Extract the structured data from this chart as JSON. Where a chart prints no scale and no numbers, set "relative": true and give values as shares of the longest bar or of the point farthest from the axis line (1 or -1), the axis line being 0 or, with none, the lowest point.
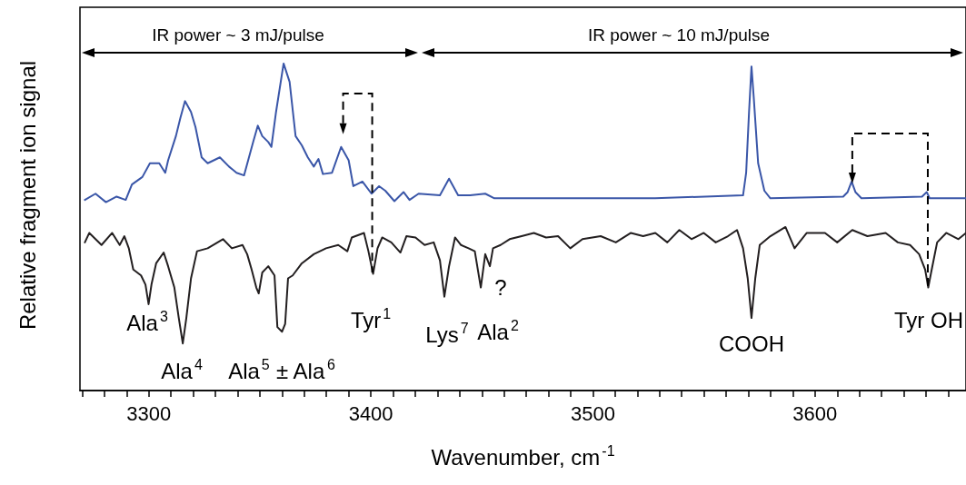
{
  "chart_data": {
    "type": "line",
    "relative": true,
    "xlabel": "Wavenumber, cm$^{-1}$",
    "ylabel": "Relative fragment ion signal",
    "xlim": [
      3269,
      3668
    ],
    "xticks": [
      {
        "value": 3270,
        "label": null
      },
      {
        "value": 3280,
        "label": null
      },
      {
        "value": 3290,
        "label": null
      },
      3300,
      {
        "value": 3310,
        "label": null
      },
      {
        "value": 3320,
        "label": null
      },
      {
        "value": 3330,
        "label": null
      },
      {
        "value": 3340,
        "label": null
      },
      {
        "value": 3350,
        "label": null
      },
      {
        "value": 3360,
        "label": null
      },
      {
        "value": 3370,
        "label": null
      },
      {
        "value": 3380,
        "label": null
      },
      {
        "value": 3390,
        "label": null
      },
      3400,
      {
        "value": 3410,
        "label": null
      },
      {
        "value": 3420,
        "label": null
      },
      {
        "value": 3430,
        "label": null
      },
      {
        "value": 3440,
        "label": null
      },
      {
        "value": 3450,
        "label": null
      },
      {
        "value": 3460,
        "label": null
      },
      {
        "value": 3470,
        "label": null
      },
      {
        "value": 3480,
        "label": null
      },
      {
        "value": 3490,
        "label": null
      },
      3500,
      {
        "value": 3510,
        "label": null
      },
      {
        "value": 3520,
        "label": null
      },
      {
        "value": 3530,
        "label": null
      },
      {
        "value": 3540,
        "label": null
      },
      {
        "value": 3550,
        "label": null
      },
      {
        "value": 3560,
        "label": null
      },
      {
        "value": 3570,
        "label": null
      },
      {
        "value": 3580,
        "label": null
      },
      {
        "value": 3590,
        "label": null
      },
      3600,
      {
        "value": 3610,
        "label": null
      },
      {
        "value": 3620,
        "label": null
      },
      {
        "value": 3630,
        "label": null
      },
      {
        "value": 3640,
        "label": null
      },
      {
        "value": 3650,
        "label": null
      },
      {
        "value": 3660,
        "label": null
      }
    ],
    "marker": "none",
    "line_style": "solid",
    "series": [
      {
        "color": "#3a56a8",
        "x": [
          3271.2,
          3276.0,
          3280.7,
          3285.5,
          3289.6,
          3292.4,
          3297.1,
          3300.5,
          3304.7,
          3307.4,
          3308.7,
          3312.2,
          3314.2,
          3316.3,
          3319.0,
          3321.0,
          3323.8,
          3326.5,
          3332.0,
          3336.1,
          3339.5,
          3342.9,
          3347.0,
          3349.1,
          3351.1,
          3353.8,
          3355.2,
          3357.3,
          3360.7,
          3363.4,
          3366.1,
          3368.9,
          3371.6,
          3374.3,
          3376.4,
          3378.4,
          3382.5,
          3386.6,
          3390.0,
          3392.1,
          3396.2,
          3400.3,
          3403.7,
          3406.5,
          3410.6,
          3414.7,
          3417.4,
          3421.5,
          3431.1,
          3435.2,
          3439.3,
          3444.7,
          3451.5,
          3455.6,
          3478.9,
          3506.2,
          3528.0,
          3567.6,
          3569.0,
          3570.3,
          3571.4,
          3572.4,
          3574.4,
          3577.2,
          3579.9,
          3612.7,
          3614.7,
          3616.5,
          3618.2,
          3620.9,
          3648.2,
          3650.3,
          3651.6,
          3668
        ],
        "values": [
          0.583,
          0.602,
          0.576,
          0.593,
          0.583,
          0.63,
          0.653,
          0.695,
          0.695,
          0.666,
          0.704,
          0.778,
          0.833,
          0.885,
          0.852,
          0.806,
          0.713,
          0.695,
          0.713,
          0.685,
          0.666,
          0.658,
          0.76,
          0.81,
          0.778,
          0.76,
          0.745,
          0.852,
          1.0,
          0.944,
          0.778,
          0.75,
          0.713,
          0.685,
          0.708,
          0.662,
          0.666,
          0.745,
          0.704,
          0.625,
          0.639,
          0.602,
          0.625,
          0.611,
          0.579,
          0.607,
          0.583,
          0.602,
          0.597,
          0.648,
          0.597,
          0.597,
          0.602,
          0.588,
          0.588,
          0.588,
          0.588,
          0.597,
          0.666,
          0.852,
          0.991,
          0.898,
          0.695,
          0.611,
          0.588,
          0.593,
          0.607,
          0.639,
          0.607,
          0.588,
          0.593,
          0.607,
          0.588,
          0.588
        ]
      },
      {
        "color": "#231f20",
        "x": [
          3271.2,
          3273.2,
          3276.0,
          3278.7,
          3283.5,
          3286.9,
          3289.0,
          3291.0,
          3293.0,
          3296.5,
          3298.5,
          3299.9,
          3301.2,
          3303.3,
          3306.7,
          3308.7,
          3311.5,
          3313.5,
          3315.3,
          3316.9,
          3319.0,
          3321.7,
          3326.5,
          3333.4,
          3337.4,
          3342.2,
          3344.3,
          3346.3,
          3348.4,
          3349.5,
          3351.1,
          3353.8,
          3356.6,
          3357.9,
          3360.0,
          3361.4,
          3362.7,
          3364.8,
          3368.9,
          3374.3,
          3379.8,
          3385.3,
          3389.4,
          3391.4,
          3396.9,
          3398.9,
          3401.0,
          3403.0,
          3405.1,
          3409.2,
          3413.3,
          3416.0,
          3420.1,
          3424.2,
          3428.3,
          3431.1,
          3433.1,
          3435.2,
          3437.9,
          3440.6,
          3444.0,
          3446.8,
          3449.5,
          3451.5,
          3453.6,
          3455.0,
          3458.4,
          3462.5,
          3467.9,
          3473.4,
          3478.9,
          3484.3,
          3489.8,
          3495.3,
          3503.5,
          3510.3,
          3517.1,
          3522.6,
          3528.1,
          3533.5,
          3538.9,
          3544.4,
          3549.9,
          3555.3,
          3560.8,
          3564.9,
          3567.6,
          3569.7,
          3571.4,
          3573.1,
          3575.1,
          3579.9,
          3586.7,
          3590.8,
          3596.3,
          3604.5,
          3610.0,
          3616.8,
          3623.6,
          3631.8,
          3637.3,
          3642.8,
          3646.9,
          3649.6,
          3651.0,
          3652.3,
          3655.0,
          3659.1,
          3664.6,
          3668
        ],
        "values": [
          0.453,
          0.482,
          0.463,
          0.445,
          0.482,
          0.445,
          0.472,
          0.435,
          0.37,
          0.352,
          0.324,
          0.264,
          0.324,
          0.389,
          0.422,
          0.38,
          0.315,
          0.222,
          0.144,
          0.222,
          0.343,
          0.426,
          0.435,
          0.463,
          0.435,
          0.445,
          0.417,
          0.37,
          0.315,
          0.297,
          0.361,
          0.38,
          0.352,
          0.194,
          0.18,
          0.204,
          0.343,
          0.352,
          0.389,
          0.417,
          0.435,
          0.445,
          0.426,
          0.468,
          0.482,
          0.426,
          0.357,
          0.435,
          0.468,
          0.453,
          0.422,
          0.472,
          0.468,
          0.445,
          0.453,
          0.398,
          0.287,
          0.38,
          0.468,
          0.445,
          0.435,
          0.426,
          0.315,
          0.417,
          0.38,
          0.435,
          0.445,
          0.463,
          0.472,
          0.482,
          0.468,
          0.472,
          0.435,
          0.463,
          0.472,
          0.453,
          0.482,
          0.472,
          0.482,
          0.453,
          0.491,
          0.463,
          0.482,
          0.453,
          0.472,
          0.491,
          0.435,
          0.343,
          0.222,
          0.343,
          0.445,
          0.472,
          0.5,
          0.435,
          0.482,
          0.482,
          0.453,
          0.491,
          0.472,
          0.482,
          0.453,
          0.445,
          0.417,
          0.37,
          0.315,
          0.361,
          0.453,
          0.482,
          0.463,
          0.482
        ]
      }
    ],
    "annotations": [
      "IR power ~ 3 mJ/pulse",
      "IR power ~ 10 mJ/pulse",
      "Ala$^{3}$",
      "Ala$^{4}$",
      "Ala$^{5}$ ± Ala$^{6}$",
      "Tyr$^{1}$",
      "Lys$^{7}$",
      "Ala$^{2}$",
      "?",
      "COOH",
      "Tyr OH"
    ]
  }
}
